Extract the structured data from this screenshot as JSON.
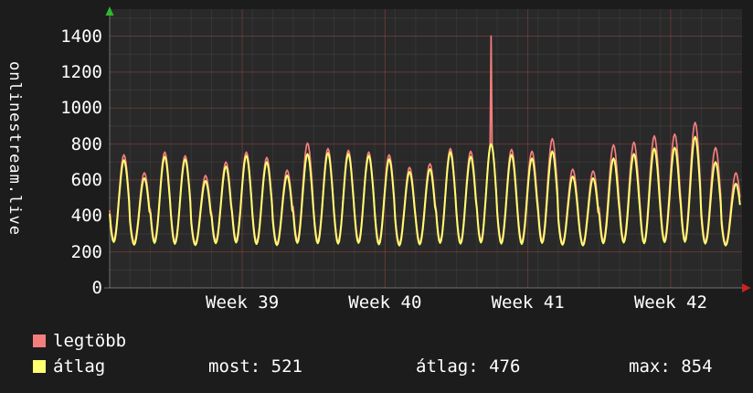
{
  "window": {
    "background": "#1c1c1c",
    "text_color": "#ffffff"
  },
  "legend": {
    "stats": [
      "most: 521",
      "átlag: 476",
      "max: 854"
    ]
  },
  "chart_data": {
    "type": "line",
    "title": "",
    "xlabel": "",
    "ylabel": "onlinestream.live",
    "grid": true,
    "legend_position": "bottom-left",
    "ylim": [
      0,
      1550
    ],
    "yticks": [
      0,
      200,
      400,
      600,
      800,
      1000,
      1200,
      1400
    ],
    "x_tick_labels": [
      "Week 39",
      "Week 40",
      "Week 41",
      "Week 42"
    ],
    "x_tick_days": [
      6.5,
      13.5,
      20.5,
      27.5
    ],
    "days_total": 31,
    "last_day_fraction": 0.9,
    "series": [
      {
        "name": "legtöbb",
        "color": "#f47e7e",
        "role": "max"
      },
      {
        "name": "átlag",
        "color": "#ffff70",
        "role": "avg"
      }
    ],
    "spike": {
      "day": 18,
      "series_index": 0,
      "value": 1400
    },
    "stats": {
      "most": 521,
      "atlag": 476,
      "max": 854
    },
    "daily_cycles": [
      {
        "max_peak": 740,
        "avg_peak": 710,
        "max_trough": 270,
        "avg_trough": 255
      },
      {
        "max_peak": 640,
        "avg_peak": 610,
        "max_trough": 255,
        "avg_trough": 240
      },
      {
        "max_peak": 755,
        "avg_peak": 730,
        "max_trough": 265,
        "avg_trough": 250
      },
      {
        "max_peak": 735,
        "avg_peak": 715,
        "max_trough": 260,
        "avg_trough": 245
      },
      {
        "max_peak": 625,
        "avg_peak": 595,
        "max_trough": 250,
        "avg_trough": 238
      },
      {
        "max_peak": 700,
        "avg_peak": 675,
        "max_trough": 262,
        "avg_trough": 248
      },
      {
        "max_peak": 755,
        "avg_peak": 735,
        "max_trough": 268,
        "avg_trough": 252
      },
      {
        "max_peak": 725,
        "avg_peak": 700,
        "max_trough": 258,
        "avg_trough": 244
      },
      {
        "max_peak": 655,
        "avg_peak": 625,
        "max_trough": 250,
        "avg_trough": 238
      },
      {
        "max_peak": 805,
        "avg_peak": 745,
        "max_trough": 266,
        "avg_trough": 250
      },
      {
        "max_peak": 775,
        "avg_peak": 750,
        "max_trough": 262,
        "avg_trough": 248
      },
      {
        "max_peak": 765,
        "avg_peak": 745,
        "max_trough": 258,
        "avg_trough": 246
      },
      {
        "max_peak": 755,
        "avg_peak": 735,
        "max_trough": 264,
        "avg_trough": 250
      },
      {
        "max_peak": 740,
        "avg_peak": 715,
        "max_trough": 256,
        "avg_trough": 242
      },
      {
        "max_peak": 670,
        "avg_peak": 645,
        "max_trough": 248,
        "avg_trough": 236
      },
      {
        "max_peak": 690,
        "avg_peak": 660,
        "max_trough": 254,
        "avg_trough": 242
      },
      {
        "max_peak": 775,
        "avg_peak": 755,
        "max_trough": 262,
        "avg_trough": 250
      },
      {
        "max_peak": 760,
        "avg_peak": 730,
        "max_trough": 258,
        "avg_trough": 246
      },
      {
        "max_peak": 810,
        "avg_peak": 800,
        "max_trough": 266,
        "avg_trough": 252
      },
      {
        "max_peak": 770,
        "avg_peak": 740,
        "max_trough": 260,
        "avg_trough": 246
      },
      {
        "max_peak": 760,
        "avg_peak": 720,
        "max_trough": 258,
        "avg_trough": 244
      },
      {
        "max_peak": 830,
        "avg_peak": 760,
        "max_trough": 264,
        "avg_trough": 250
      },
      {
        "max_peak": 660,
        "avg_peak": 620,
        "max_trough": 252,
        "avg_trough": 240
      },
      {
        "max_peak": 650,
        "avg_peak": 610,
        "max_trough": 246,
        "avg_trough": 236
      },
      {
        "max_peak": 795,
        "avg_peak": 720,
        "max_trough": 262,
        "avg_trough": 248
      },
      {
        "max_peak": 810,
        "avg_peak": 745,
        "max_trough": 266,
        "avg_trough": 252
      },
      {
        "max_peak": 845,
        "avg_peak": 775,
        "max_trough": 260,
        "avg_trough": 248
      },
      {
        "max_peak": 855,
        "avg_peak": 780,
        "max_trough": 268,
        "avg_trough": 254
      },
      {
        "max_peak": 920,
        "avg_peak": 840,
        "max_trough": 272,
        "avg_trough": 256
      },
      {
        "max_peak": 780,
        "avg_peak": 700,
        "max_trough": 258,
        "avg_trough": 246
      },
      {
        "max_peak": 640,
        "avg_peak": 580,
        "max_trough": 246,
        "avg_trough": 236
      }
    ]
  }
}
